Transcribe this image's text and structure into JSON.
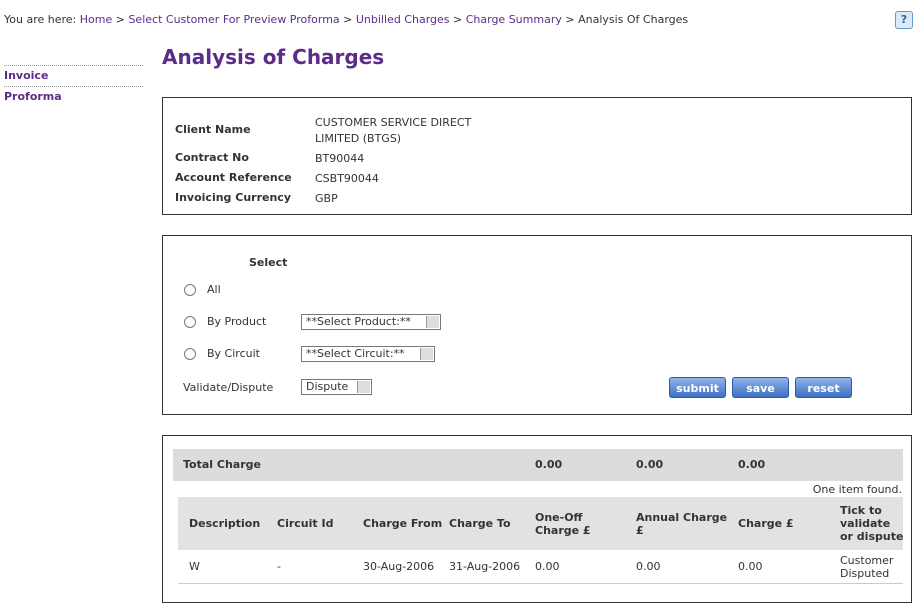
{
  "breadcrumb": {
    "prefix": "You are here:",
    "separator": ">",
    "links": [
      "Home",
      "Select Customer For Preview Proforma",
      "Unbilled Charges",
      "Charge Summary"
    ],
    "current": "Analysis Of Charges"
  },
  "help_icon": "?",
  "sidebar": [
    "Invoice",
    "Proforma"
  ],
  "title": "Analysis of Charges",
  "client_info": [
    [
      "Client Name",
      "CUSTOMER SERVICE DIRECT LIMITED (BTGS)"
    ],
    [
      "Contract No",
      "BT90044"
    ],
    [
      "Account Reference",
      "CSBT90044"
    ],
    [
      "Invoicing Currency",
      "GBP"
    ]
  ],
  "select_form": {
    "heading": "Select",
    "options": [
      {
        "label": "All"
      },
      {
        "label": "By Product",
        "dropdown": "**Select Product:**"
      },
      {
        "label": "By Circuit",
        "dropdown": "**Select Circuit:**"
      }
    ],
    "validate_label": "Validate/Dispute",
    "validate_value": "Dispute",
    "buttons": [
      "submit",
      "save",
      "reset"
    ]
  },
  "charges": {
    "total_label": "Total Charge",
    "totals": [
      "0.00",
      "0.00",
      "0.00"
    ],
    "status": "One item found.",
    "columns": [
      "Description",
      "Circuit Id",
      "Charge From",
      "Charge To",
      "One-Off Charge £",
      "Annual Charge £",
      "Charge £",
      "Tick to validate or dispute"
    ],
    "rows": [
      [
        "W",
        "-",
        "30-Aug-2006",
        "31-Aug-2006",
        "0.00",
        "0.00",
        "0.00",
        "Customer Disputed"
      ]
    ]
  }
}
